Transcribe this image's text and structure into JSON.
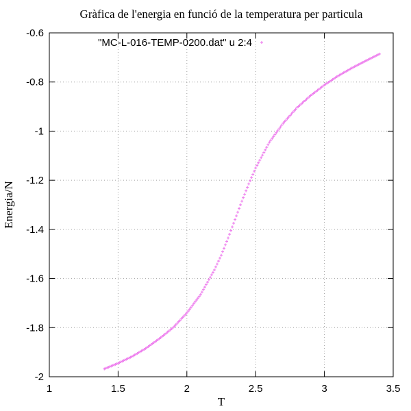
{
  "chart_data": {
    "type": "scatter",
    "title": "Gràfica de l'energia en funció de la temperatura per particula",
    "xlabel": "T",
    "ylabel": "Energia/N",
    "xlim": [
      1,
      3.5
    ],
    "ylim": [
      -2,
      -0.6
    ],
    "xticks": [
      1,
      1.5,
      2,
      2.5,
      3,
      3.5
    ],
    "xtick_labels": [
      "1",
      "1.5",
      "2",
      "2.5",
      "3",
      "3.5"
    ],
    "yticks": [
      -2,
      -1.8,
      -1.6,
      -1.4,
      -1.2,
      -1,
      -0.8,
      -0.6
    ],
    "ytick_labels": [
      "-2",
      "-1.8",
      "-1.6",
      "-1.4",
      "-1.2",
      "-1",
      "-0.8",
      "-0.6"
    ],
    "grid": true,
    "legend_position": "top-right",
    "series": [
      {
        "name": "\"MC-L-016-TEMP-0200.dat\" u 2:4",
        "color": "#ee82ee",
        "marker": "plus",
        "x": [
          1.4,
          1.5,
          1.6,
          1.7,
          1.8,
          1.9,
          2.0,
          2.1,
          2.2,
          2.25,
          2.3,
          2.35,
          2.4,
          2.45,
          2.5,
          2.6,
          2.7,
          2.8,
          2.9,
          3.0,
          3.1,
          3.2,
          3.3,
          3.4
        ],
        "y": [
          -1.968,
          -1.945,
          -1.918,
          -1.885,
          -1.845,
          -1.8,
          -1.74,
          -1.665,
          -1.565,
          -1.505,
          -1.435,
          -1.36,
          -1.285,
          -1.215,
          -1.15,
          -1.045,
          -0.968,
          -0.905,
          -0.855,
          -0.812,
          -0.775,
          -0.743,
          -0.714,
          -0.686
        ]
      }
    ]
  }
}
